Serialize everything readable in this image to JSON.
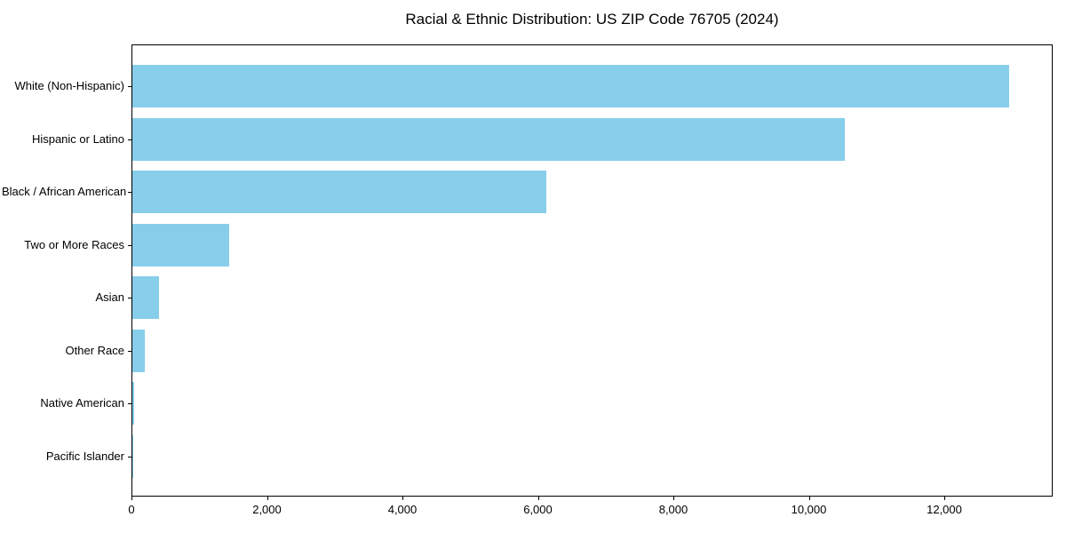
{
  "chart_data": {
    "type": "bar",
    "orientation": "horizontal",
    "title": "Racial & Ethnic Distribution: US ZIP Code 76705 (2024)",
    "categories": [
      "White (Non-Hispanic)",
      "Hispanic or Latino",
      "Black / African American",
      "Two or More Races",
      "Asian",
      "Other Race",
      "Native American",
      "Pacific Islander"
    ],
    "values": [
      12970,
      10540,
      6120,
      1430,
      400,
      190,
      20,
      8
    ],
    "xlabel": "",
    "ylabel": "",
    "xlim": [
      0,
      13600
    ],
    "x_ticks": [
      {
        "value": 0,
        "label": "0"
      },
      {
        "value": 2000,
        "label": "2,000"
      },
      {
        "value": 4000,
        "label": "4,000"
      },
      {
        "value": 6000,
        "label": "6,000"
      },
      {
        "value": 8000,
        "label": "8,000"
      },
      {
        "value": 10000,
        "label": "10,000"
      },
      {
        "value": 12000,
        "label": "12,000"
      }
    ],
    "bar_color": "#87CEEB",
    "axis_color": "#000000",
    "grid": false,
    "legend": null
  }
}
